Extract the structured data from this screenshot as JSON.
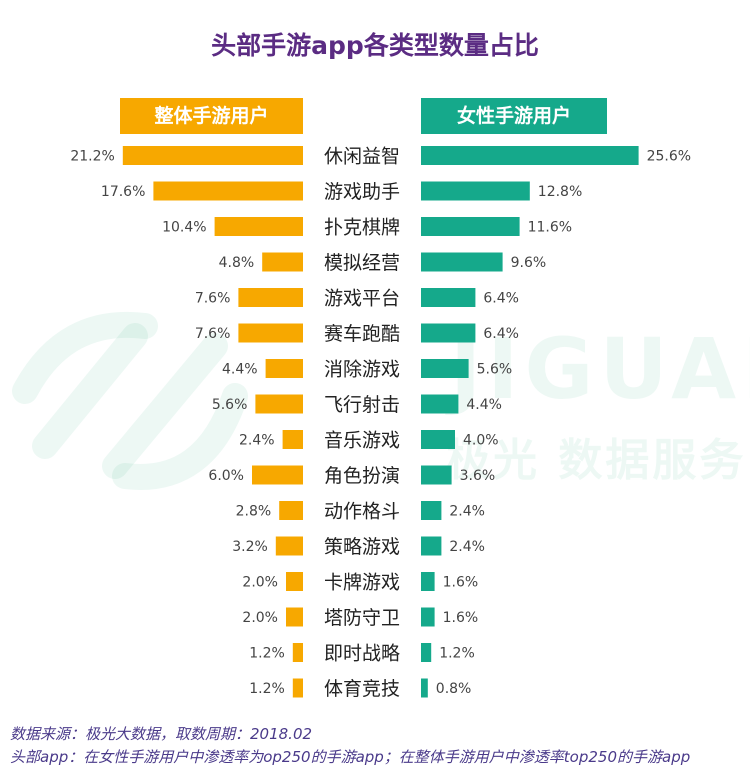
{
  "title": "头部手游app各类型数量占比",
  "colors": {
    "left": "#f7a800",
    "right": "#15a98b",
    "title": "#5b2c83"
  },
  "watermark": {
    "name": "JIGUANG",
    "sub": "极光 数据服务"
  },
  "chart_data": {
    "type": "bar",
    "orientation": "horizontal",
    "layout": "diverging",
    "categories": [
      "休闲益智",
      "游戏助手",
      "扑克棋牌",
      "模拟经营",
      "游戏平台",
      "赛车跑酷",
      "消除游戏",
      "飞行射击",
      "音乐游戏",
      "角色扮演",
      "动作格斗",
      "策略游戏",
      "卡牌游戏",
      "塔防守卫",
      "即时战略",
      "体育竞技"
    ],
    "series": [
      {
        "name": "整体手游用户",
        "values": [
          21.2,
          17.6,
          10.4,
          4.8,
          7.6,
          7.6,
          4.4,
          5.6,
          2.4,
          6.0,
          2.8,
          3.2,
          2.0,
          2.0,
          1.2,
          1.2
        ],
        "labels": [
          "21.2%",
          "17.6%",
          "10.4%",
          "4.8%",
          "7.6%",
          "7.6%",
          "4.4%",
          "5.6%",
          "2.4%",
          "6.0%",
          "2.8%",
          "3.2%",
          "2.0%",
          "2.0%",
          "1.2%",
          "1.2%"
        ]
      },
      {
        "name": "女性手游用户",
        "values": [
          25.6,
          12.8,
          11.6,
          9.6,
          6.4,
          6.4,
          5.6,
          4.4,
          4.0,
          3.6,
          2.4,
          2.4,
          1.6,
          1.6,
          1.2,
          0.8
        ],
        "labels": [
          "25.6%",
          "12.8%",
          "11.6%",
          "9.6%",
          "6.4%",
          "6.4%",
          "5.6%",
          "4.4%",
          "4.0%",
          "3.6%",
          "2.4%",
          "2.4%",
          "1.6%",
          "1.6%",
          "1.2%",
          "0.8%"
        ]
      }
    ],
    "title": "头部手游app各类型数量占比",
    "unit": "%"
  },
  "footnotes": [
    "数据来源：极光大数据，取数周期：2018.02",
    "头部app：在女性手游用户中渗透率为op250的手游app；在整体手游用户中渗透率top250的手游app"
  ]
}
